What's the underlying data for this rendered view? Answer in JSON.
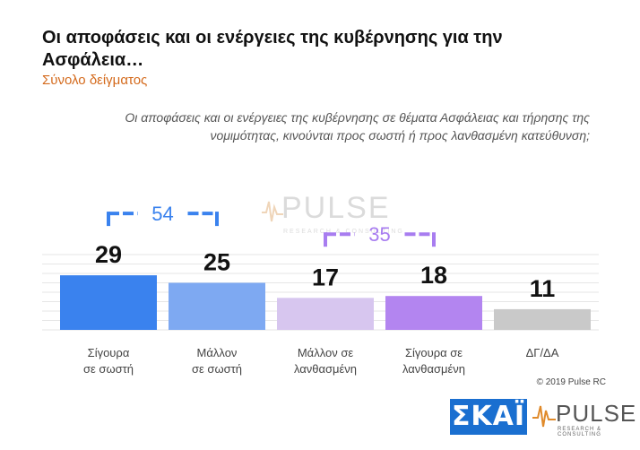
{
  "header": {
    "title": "Οι αποφάσεις και οι ενέργειες της κυβέρνησης για την Ασφάλεια…",
    "subtitle": "Σύνολο δείγματος"
  },
  "question": "Οι αποφάσεις και οι ενέργειες της κυβέρνησης σε θέματα Ασφάλειας και τήρησης της νομιμότητας, κινούνται προς σωστή ή προς λανθασμένη κατεύθυνση;",
  "chart_data": {
    "type": "bar",
    "categories": [
      [
        "Σίγουρα",
        "σε σωστή"
      ],
      [
        "Μάλλον",
        "σε σωστή"
      ],
      [
        "Μάλλον σε",
        "λανθασμένη"
      ],
      [
        "Σίγουρα σε",
        "λανθασμένη"
      ],
      [
        "ΔΓ/ΔΑ"
      ]
    ],
    "values": [
      29,
      25,
      17,
      18,
      11
    ],
    "colors": [
      "#3a82ee",
      "#7ea9f2",
      "#d7c6ef",
      "#b385f0",
      "#c9c9c9"
    ],
    "groups": [
      {
        "label": "54",
        "from": 0,
        "to": 1,
        "color": "#3a82ee"
      },
      {
        "label": "35",
        "from": 2,
        "to": 3,
        "color": "#a87df0"
      }
    ],
    "ylim": [
      0,
      40
    ],
    "grid": true,
    "value_label_color": "#111111",
    "category_label_color": "#444444"
  },
  "footer": {
    "copyright": "© 2019 Pulse RC",
    "logo_skai": "ΣΚΑΪ",
    "logo_pulse": "PULSE",
    "logo_pulse_sub": "RESEARCH & CONSULTING"
  }
}
